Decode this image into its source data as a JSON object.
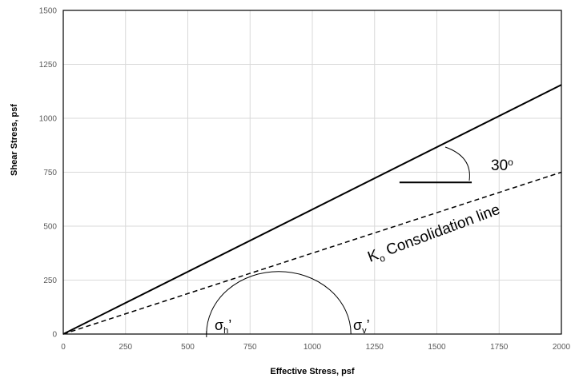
{
  "chart_data": {
    "type": "line",
    "xlabel": "Effective Stress, psf",
    "ylabel": "Shear Stress, psf",
    "xlim": [
      0,
      2000
    ],
    "ylim": [
      0,
      1500
    ],
    "x_ticks": [
      0,
      250,
      500,
      750,
      1000,
      1250,
      1500,
      1750,
      2000
    ],
    "y_ticks": [
      0,
      250,
      500,
      750,
      1000,
      1250,
      1500
    ],
    "grid": true,
    "series": [
      {
        "style": "solid",
        "x": [
          0,
          2000
        ],
        "y": [
          0,
          1155
        ]
      },
      {
        "style": "dashed",
        "x": [
          0,
          2000
        ],
        "y": [
          0,
          750
        ]
      }
    ],
    "mohr_circle": {
      "center": 865,
      "radius": 290
    },
    "slope_marker": {
      "x": [
        1350,
        1640
      ],
      "y": 703
    },
    "annotations": {
      "angle": {
        "value": "30",
        "superscript": "o"
      },
      "consolidation_label": {
        "main": "K",
        "sub": "o",
        "rest": " Consolidation line"
      },
      "sigma_h": {
        "symbol": "σ",
        "sub": "h",
        "prime": "’"
      },
      "sigma_v": {
        "symbol": "σ",
        "sub": "v",
        "prime": "’"
      }
    }
  }
}
